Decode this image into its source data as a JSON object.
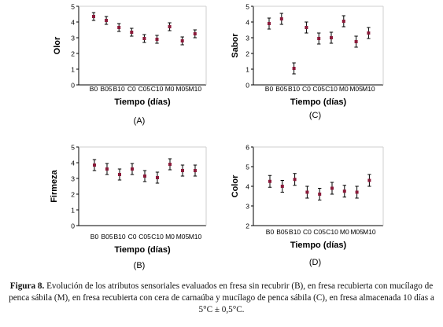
{
  "chart_data": [
    {
      "type": "scatter",
      "panel_label": "(A)",
      "xlabel": "Tiempo (días)",
      "ylabel": "Olor",
      "categories": [
        "B0",
        "B05",
        "B10",
        "C0",
        "C05",
        "C10",
        "M0",
        "M05",
        "M10"
      ],
      "values": [
        4.35,
        4.1,
        3.65,
        3.35,
        2.95,
        2.9,
        3.7,
        2.8,
        3.25
      ],
      "errors": [
        0.25,
        0.25,
        0.25,
        0.25,
        0.25,
        0.25,
        0.25,
        0.25,
        0.25
      ],
      "ylim": [
        0,
        5
      ],
      "yticks": [
        "0",
        "1",
        "2",
        "3",
        "4",
        "5"
      ],
      "grid": false
    },
    {
      "type": "scatter",
      "panel_label": "(C)",
      "xlabel": "Tiempo (días)",
      "ylabel": "Sabor",
      "categories": [
        "B0",
        "B05",
        "B10",
        "C0",
        "C05",
        "C10",
        "M0",
        "M05",
        "M10"
      ],
      "values": [
        3.9,
        4.2,
        1.05,
        3.65,
        2.95,
        3.0,
        4.05,
        2.75,
        3.3
      ],
      "errors": [
        0.35,
        0.35,
        0.35,
        0.35,
        0.35,
        0.35,
        0.35,
        0.35,
        0.35
      ],
      "ylim": [
        0,
        5
      ],
      "yticks": [
        "0",
        "1",
        "2",
        "3",
        "4",
        "5"
      ],
      "grid": false
    },
    {
      "type": "scatter",
      "panel_label": "(B)",
      "xlabel": "Tiempo (días)",
      "ylabel": "Firmeza",
      "categories": [
        "B0",
        "B05",
        "B10",
        "C0",
        "C05",
        "C10",
        "M0",
        "M05",
        "M10"
      ],
      "values": [
        3.85,
        3.6,
        3.25,
        3.6,
        3.15,
        3.05,
        3.9,
        3.5,
        3.5
      ],
      "errors": [
        0.35,
        0.35,
        0.35,
        0.35,
        0.35,
        0.35,
        0.35,
        0.35,
        0.35
      ],
      "ylim": [
        0,
        5
      ],
      "yticks": [
        "0",
        "1",
        "2",
        "3",
        "4",
        "5"
      ],
      "grid": false
    },
    {
      "type": "scatter",
      "panel_label": "(D)",
      "xlabel": "Tiempo (días)",
      "ylabel": "Color",
      "categories": [
        "B0",
        "B05",
        "B10",
        "C0",
        "C05",
        "C10",
        "M0",
        "M05",
        "M10"
      ],
      "values": [
        4.25,
        4.0,
        4.35,
        3.7,
        3.6,
        3.9,
        3.75,
        3.7,
        4.3
      ],
      "errors": [
        0.3,
        0.3,
        0.3,
        0.3,
        0.3,
        0.3,
        0.3,
        0.3,
        0.3
      ],
      "ylim": [
        2,
        6
      ],
      "yticks": [
        "2",
        "3",
        "4",
        "5",
        "6"
      ],
      "grid": false
    }
  ],
  "caption": {
    "label": "Figura 8.",
    "text": " Evolución de los atributos sensoriales evaluados en fresa sin recubrir (B), en fresa recubierta con mucílago de penca sábila (M), en fresa recubierta con cera de carnaúba y mucílago de penca sábila (C), en fresa almacenada 10 días a 5°C ± 0,5°C."
  },
  "colors": {
    "marker": "#8b1a3a",
    "axis": "#000000"
  }
}
